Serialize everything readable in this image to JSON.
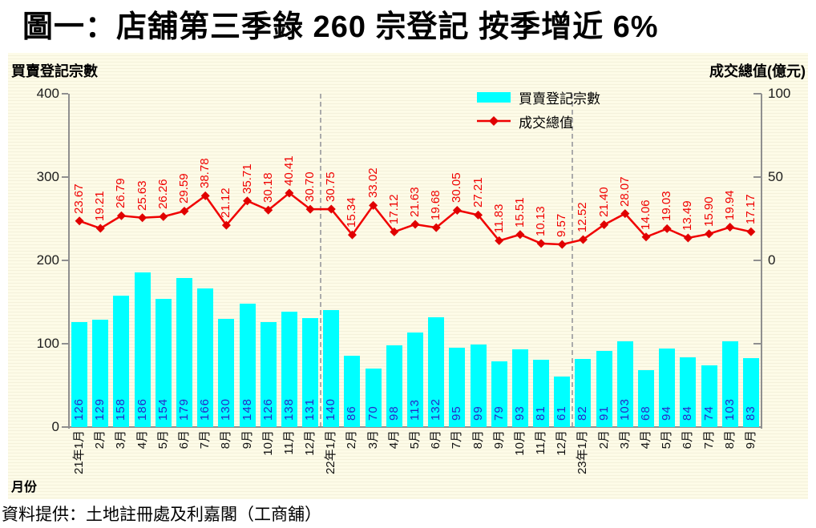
{
  "title": "圖一：店舖第三季錄 260 宗登記  按季增近 6%",
  "panel": {
    "left_axis_title": "買賣登記宗數",
    "right_axis_title": "成交總值(億元)",
    "x_axis_title": "月份"
  },
  "legend": {
    "bar_label": "買賣登記宗數",
    "line_label": "成交總值"
  },
  "footer": "資料提供：土地註冊處及利嘉閣（工商舖）",
  "colors": {
    "bar_fill": "#00FFFF",
    "bar_value_label": "#2828C8",
    "line": "#F00000",
    "panel_background": "#FDFBE7",
    "axis_line": "#8F8F8F",
    "text": "#000000"
  },
  "chart_data": {
    "type": "bar",
    "subtype": "combo-bar-line-dual-axis",
    "title": "圖一：店舖第三季錄 260 宗登記  按季增近 6%",
    "xlabel": "月份",
    "ylabel_left": "買賣登記宗數",
    "ylabel_right": "成交總值(億元)",
    "categories": [
      "21年1月",
      "2月",
      "3月",
      "4月",
      "5月",
      "6月",
      "7月",
      "8月",
      "9月",
      "10月",
      "11月",
      "12月",
      "22年1月",
      "2月",
      "3月",
      "4月",
      "5月",
      "6月",
      "7月",
      "8月",
      "9月",
      "10月",
      "11月",
      "12月",
      "23年1月",
      "2月",
      "3月",
      "4月",
      "5月",
      "6月",
      "7月",
      "8月",
      "9月"
    ],
    "series": [
      {
        "name": "買賣登記宗數",
        "type": "bar",
        "axis": "left",
        "values": [
          126,
          129,
          158,
          186,
          154,
          179,
          166,
          130,
          148,
          126,
          138,
          131,
          140,
          86,
          70,
          98,
          113,
          132,
          95,
          99,
          79,
          93,
          81,
          61,
          82,
          91,
          103,
          68,
          94,
          84,
          74,
          103,
          83
        ]
      },
      {
        "name": "成交總值",
        "type": "line",
        "axis": "right",
        "values": [
          23.67,
          19.21,
          26.79,
          25.63,
          26.26,
          29.59,
          38.78,
          21.12,
          35.71,
          30.18,
          40.41,
          30.7,
          30.75,
          15.34,
          33.02,
          17.12,
          21.63,
          19.68,
          30.05,
          27.21,
          11.83,
          15.51,
          10.13,
          9.57,
          12.52,
          21.4,
          28.07,
          14.06,
          19.03,
          13.49,
          15.9,
          19.94,
          17.17
        ]
      }
    ],
    "left_axis": {
      "range": [
        0,
        400
      ],
      "ticks": [
        0,
        100,
        200,
        300,
        400
      ]
    },
    "right_axis": {
      "range": [
        -100,
        100
      ],
      "ticks_labeled": [
        0,
        50,
        100
      ],
      "ticks_unlabeled": [
        -50
      ]
    },
    "year_separators_after_index": [
      11,
      23
    ],
    "grid": false,
    "legend_position": "inside-top-right"
  }
}
